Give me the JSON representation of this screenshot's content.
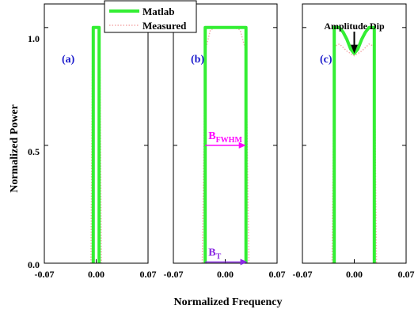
{
  "chart_data": [
    {
      "type": "line",
      "panel_label": "(a)",
      "xlim": [
        -0.07,
        0.07
      ],
      "ylim": [
        0,
        1.1
      ],
      "xticks": [
        "-0.07",
        "0.00",
        "0.07"
      ],
      "series": [
        {
          "name": "Matlab",
          "x": [
            -0.004,
            -0.004,
            0.004,
            0.004
          ],
          "y": [
            0,
            1.0,
            1.0,
            0
          ]
        },
        {
          "name": "Measured",
          "x": [
            -0.007,
            -0.005,
            -0.0035,
            0.0035,
            0.005,
            0.007
          ],
          "y": [
            0,
            0.9,
            1.0,
            1.0,
            0.9,
            0
          ]
        }
      ]
    },
    {
      "type": "line",
      "panel_label": "(b)",
      "xlim": [
        -0.07,
        0.07
      ],
      "ylim": [
        0,
        1.1
      ],
      "xticks": [
        "-0.07",
        "0.00",
        "0.07"
      ],
      "series": [
        {
          "name": "Matlab",
          "x": [
            -0.027,
            -0.027,
            0.028,
            0.028
          ],
          "y": [
            0,
            1.0,
            1.0,
            0
          ]
        },
        {
          "name": "Measured",
          "x": [
            -0.031,
            -0.027,
            -0.02,
            -0.012,
            0.0,
            0.012,
            0.02,
            0.028,
            0.032
          ],
          "y": [
            0,
            0.9,
            0.99,
            1.0,
            1.0,
            1.0,
            0.99,
            0.9,
            0
          ]
        }
      ],
      "annotations": [
        {
          "base": "B",
          "sub": "FWHM",
          "y": 0.5,
          "x_range": [
            -0.027,
            0.028
          ],
          "color": "#ff00ff"
        },
        {
          "base": "B",
          "sub": "T",
          "y": 0.005,
          "x_range": [
            -0.027,
            0.03
          ],
          "color": "#8a2be2"
        }
      ]
    },
    {
      "type": "line",
      "panel_label": "(c)",
      "xlim": [
        -0.07,
        0.07
      ],
      "ylim": [
        0,
        1.1
      ],
      "xticks": [
        "-0.07",
        "0.00",
        "0.07"
      ],
      "series": [
        {
          "name": "Matlab",
          "x": [
            -0.027,
            -0.027,
            -0.02,
            -0.015,
            -0.01,
            -0.005,
            0.0,
            0.005,
            0.01,
            0.015,
            0.02,
            0.027,
            0.027
          ],
          "y": [
            0,
            1.0,
            1.0,
            0.98,
            0.95,
            0.91,
            0.89,
            0.91,
            0.95,
            0.98,
            1.0,
            1.0,
            0
          ]
        },
        {
          "name": "Measured",
          "x": [
            -0.03,
            -0.027,
            -0.02,
            -0.01,
            0.0,
            0.01,
            0.02,
            0.027,
            0.03
          ],
          "y": [
            0,
            0.92,
            0.93,
            0.9,
            0.88,
            0.9,
            0.93,
            0.92,
            0
          ]
        }
      ],
      "annotations": [
        {
          "text": "Amplitude Dip",
          "point": [
            0.0,
            0.89
          ]
        }
      ]
    }
  ],
  "ylabel": "Normalized Power",
  "xlabel": "Normalized Frequency",
  "yticks": [
    "0.0",
    "0.5",
    "1.0"
  ],
  "ytick_values": [
    0,
    0.5,
    1.0
  ],
  "legend": {
    "placement": "top-center",
    "entries": [
      {
        "label": "Matlab",
        "style": "solid"
      },
      {
        "label": "Measured",
        "style": "dotted"
      }
    ]
  },
  "colors": {
    "matlab": "#33ee33",
    "measured": "#f4aaaa",
    "panel_label": "#1a1acc",
    "axis": "#000000"
  }
}
